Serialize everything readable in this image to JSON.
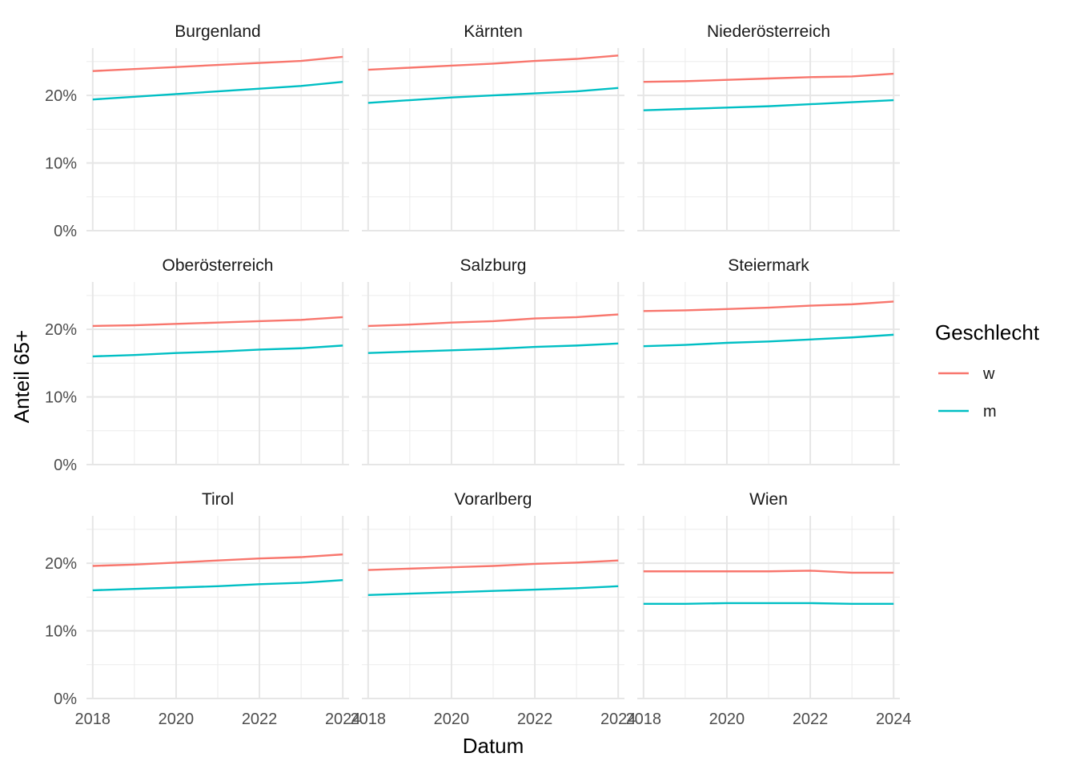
{
  "chart_data": {
    "type": "line",
    "xlabel": "Datum",
    "ylabel": "Anteil 65+",
    "x": [
      2018,
      2019,
      2020,
      2021,
      2022,
      2023,
      2024
    ],
    "x_ticks": [
      "2018",
      "2020",
      "2022",
      "2024"
    ],
    "x_tick_values": [
      2018,
      2020,
      2022,
      2024
    ],
    "y_ticks": [
      "0%",
      "10%",
      "20%"
    ],
    "y_tick_values": [
      0,
      0.1,
      0.2
    ],
    "xlim": [
      2017.85,
      2024.15
    ],
    "ylim": [
      0,
      0.27
    ],
    "grid": true,
    "legend": {
      "title": "Geschlecht",
      "position": "right",
      "entries": [
        {
          "label": "w",
          "color": "#F8766D"
        },
        {
          "label": "m",
          "color": "#00BFC4"
        }
      ]
    },
    "panels": [
      {
        "title": "Burgenland",
        "series": [
          {
            "name": "w",
            "color": "#F8766D",
            "values": [
              0.236,
              0.239,
              0.242,
              0.245,
              0.248,
              0.251,
              0.257
            ]
          },
          {
            "name": "m",
            "color": "#00BFC4",
            "values": [
              0.194,
              0.198,
              0.202,
              0.206,
              0.21,
              0.214,
              0.22
            ]
          }
        ]
      },
      {
        "title": "Kärnten",
        "series": [
          {
            "name": "w",
            "color": "#F8766D",
            "values": [
              0.238,
              0.241,
              0.244,
              0.247,
              0.251,
              0.254,
              0.259
            ]
          },
          {
            "name": "m",
            "color": "#00BFC4",
            "values": [
              0.189,
              0.193,
              0.197,
              0.2,
              0.203,
              0.206,
              0.211
            ]
          }
        ]
      },
      {
        "title": "Niederösterreich",
        "series": [
          {
            "name": "w",
            "color": "#F8766D",
            "values": [
              0.22,
              0.221,
              0.223,
              0.225,
              0.227,
              0.228,
              0.232
            ]
          },
          {
            "name": "m",
            "color": "#00BFC4",
            "values": [
              0.178,
              0.18,
              0.182,
              0.184,
              0.187,
              0.19,
              0.193
            ]
          }
        ]
      },
      {
        "title": "Oberösterreich",
        "series": [
          {
            "name": "w",
            "color": "#F8766D",
            "values": [
              0.205,
              0.206,
              0.208,
              0.21,
              0.212,
              0.214,
              0.218
            ]
          },
          {
            "name": "m",
            "color": "#00BFC4",
            "values": [
              0.16,
              0.162,
              0.165,
              0.167,
              0.17,
              0.172,
              0.176
            ]
          }
        ]
      },
      {
        "title": "Salzburg",
        "series": [
          {
            "name": "w",
            "color": "#F8766D",
            "values": [
              0.205,
              0.207,
              0.21,
              0.212,
              0.216,
              0.218,
              0.222
            ]
          },
          {
            "name": "m",
            "color": "#00BFC4",
            "values": [
              0.165,
              0.167,
              0.169,
              0.171,
              0.174,
              0.176,
              0.179
            ]
          }
        ]
      },
      {
        "title": "Steiermark",
        "series": [
          {
            "name": "w",
            "color": "#F8766D",
            "values": [
              0.227,
              0.228,
              0.23,
              0.232,
              0.235,
              0.237,
              0.241
            ]
          },
          {
            "name": "m",
            "color": "#00BFC4",
            "values": [
              0.175,
              0.177,
              0.18,
              0.182,
              0.185,
              0.188,
              0.192
            ]
          }
        ]
      },
      {
        "title": "Tirol",
        "series": [
          {
            "name": "w",
            "color": "#F8766D",
            "values": [
              0.196,
              0.198,
              0.201,
              0.204,
              0.207,
              0.209,
              0.213
            ]
          },
          {
            "name": "m",
            "color": "#00BFC4",
            "values": [
              0.16,
              0.162,
              0.164,
              0.166,
              0.169,
              0.171,
              0.175
            ]
          }
        ]
      },
      {
        "title": "Vorarlberg",
        "series": [
          {
            "name": "w",
            "color": "#F8766D",
            "values": [
              0.19,
              0.192,
              0.194,
              0.196,
              0.199,
              0.201,
              0.204
            ]
          },
          {
            "name": "m",
            "color": "#00BFC4",
            "values": [
              0.153,
              0.155,
              0.157,
              0.159,
              0.161,
              0.163,
              0.166
            ]
          }
        ]
      },
      {
        "title": "Wien",
        "series": [
          {
            "name": "w",
            "color": "#F8766D",
            "values": [
              0.188,
              0.188,
              0.188,
              0.188,
              0.189,
              0.186,
              0.186
            ]
          },
          {
            "name": "m",
            "color": "#00BFC4",
            "values": [
              0.14,
              0.14,
              0.141,
              0.141,
              0.141,
              0.14,
              0.14
            ]
          }
        ]
      }
    ]
  }
}
